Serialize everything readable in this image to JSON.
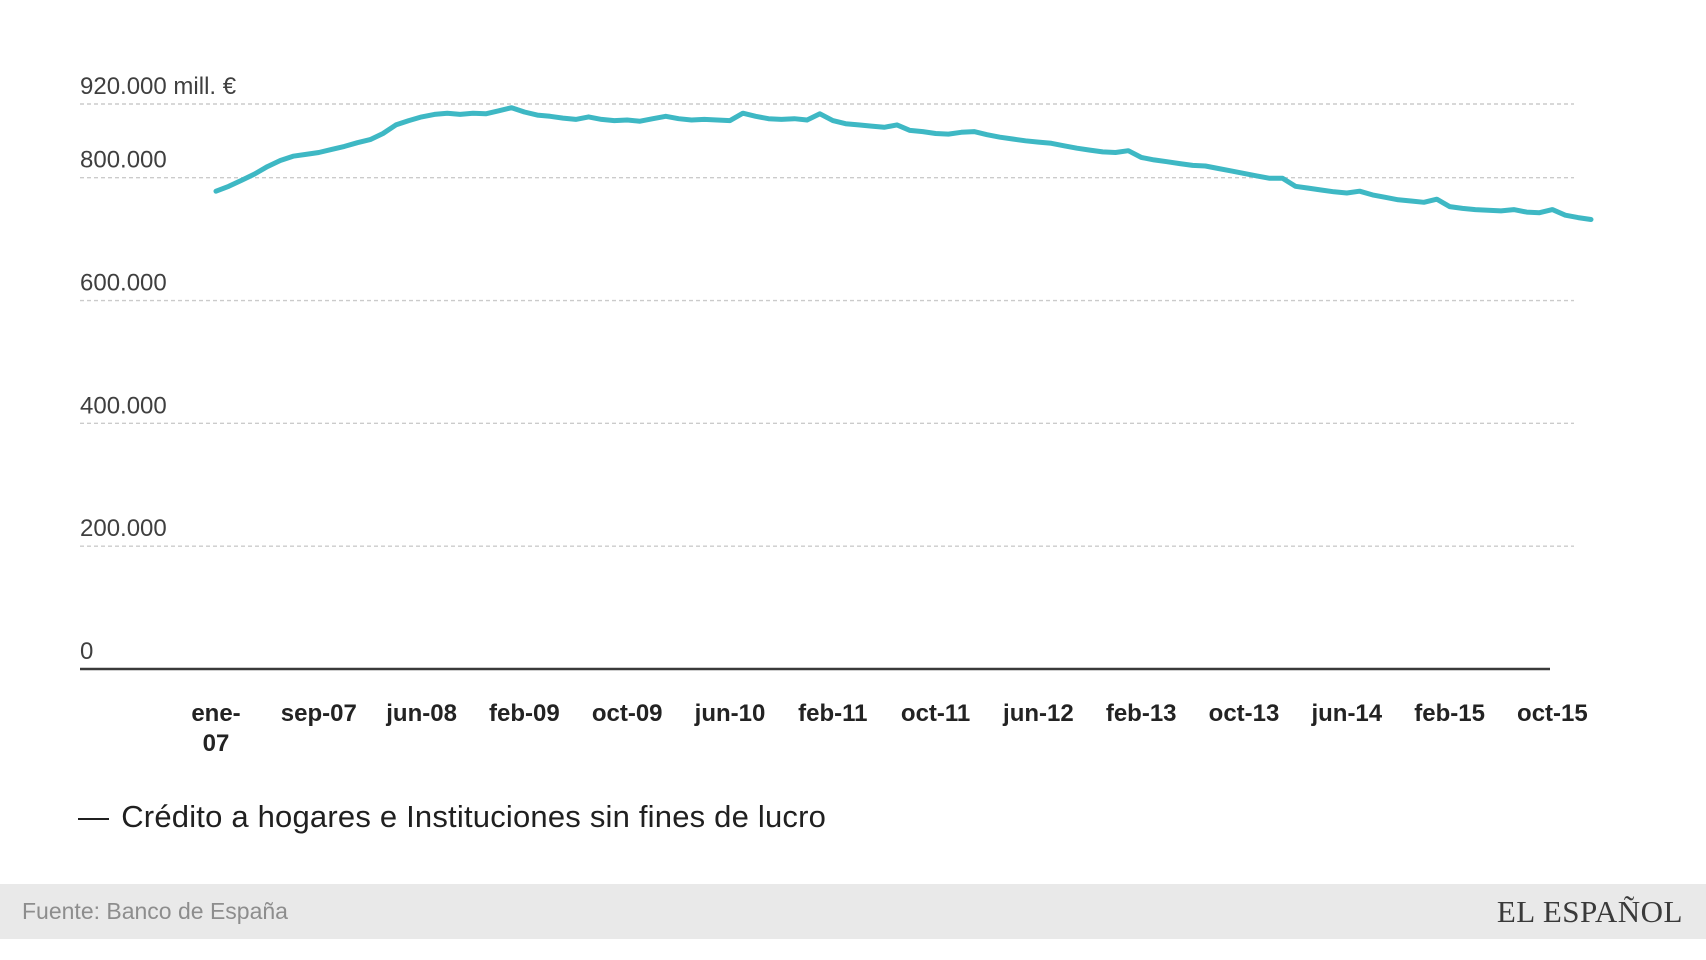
{
  "chart": {
    "legend_dash": "—"
  },
  "footer": {
    "source": "Fuente: Banco de España",
    "brand": "EL ESPAÑOL"
  },
  "chart_data": {
    "type": "line",
    "title": "",
    "xlabel": "",
    "ylabel": "mill. €",
    "frequency": "monthly",
    "x_start": "ene-07",
    "x_end": "dic-15",
    "ylim": [
      0,
      938000
    ],
    "grid": "dashed-horizontal",
    "legend_position": "bottom",
    "y_tick_labels": [
      {
        "text": "920.000 mill. €",
        "value": 920000
      },
      {
        "text": "800.000",
        "value": 800000
      },
      {
        "text": "600.000",
        "value": 600000
      },
      {
        "text": "400.000",
        "value": 400000
      },
      {
        "text": "200.000",
        "value": 200000
      },
      {
        "text": "0",
        "value": 0
      }
    ],
    "gridline_values": [
      920000,
      800000,
      600000,
      400000,
      200000
    ],
    "x_tick_labels": [
      "ene-\n07",
      "sep-07",
      "jun-08",
      "feb-09",
      "oct-09",
      "jun-10",
      "feb-11",
      "oct-11",
      "jun-12",
      "feb-13",
      "oct-13",
      "jun-14",
      "feb-15",
      "oct-15"
    ],
    "x_tick_month_step": 8,
    "colors": {
      "line": "#3eb8c4",
      "grid": "#cbcbcb",
      "axis": "#3a3a3a"
    },
    "series": [
      {
        "name": "Crédito a hogares e Instituciones sin fines de lucro",
        "color": "#3eb8c4",
        "values": [
          778000,
          786000,
          796000,
          806000,
          818000,
          828000,
          835000,
          838000,
          841000,
          846000,
          851000,
          857000,
          862000,
          872000,
          886000,
          893000,
          899000,
          903000,
          905000,
          903000,
          905000,
          904000,
          909000,
          914000,
          907000,
          902000,
          900000,
          897000,
          895000,
          899000,
          895000,
          893000,
          894000,
          892000,
          896000,
          900000,
          896000,
          894000,
          895000,
          894000,
          893000,
          905000,
          900000,
          896000,
          895000,
          896000,
          894000,
          904000,
          893000,
          888000,
          886000,
          884000,
          882000,
          886000,
          877000,
          875000,
          872000,
          871000,
          874000,
          875000,
          870000,
          866000,
          863000,
          860000,
          858000,
          856000,
          852000,
          848000,
          845000,
          842000,
          841000,
          844000,
          833000,
          829000,
          826000,
          823000,
          820000,
          819000,
          815000,
          811000,
          807000,
          803000,
          799000,
          799000,
          786000,
          783000,
          780000,
          777000,
          775000,
          778000,
          772000,
          768000,
          764000,
          762000,
          760000,
          765000,
          753000,
          750000,
          748000,
          747000,
          746000,
          748000,
          744000,
          743000,
          748000,
          739000,
          735000,
          732000
        ]
      }
    ]
  }
}
